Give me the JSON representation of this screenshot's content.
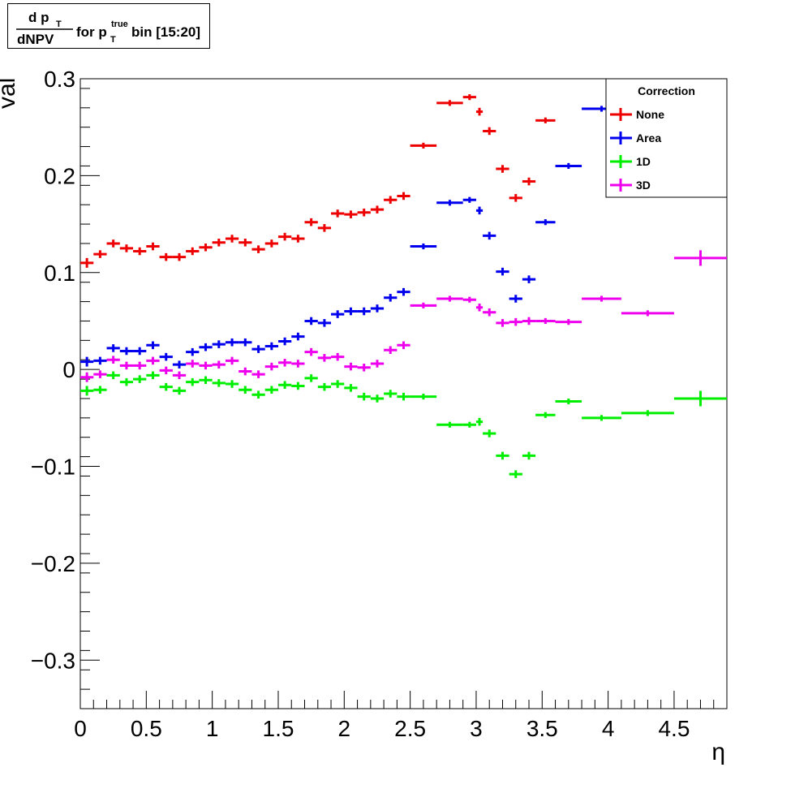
{
  "chart_data": {
    "type": "scatter",
    "title": {
      "frac_top": "d p",
      "frac_top_sub": "T",
      "frac_bottom": "dNPV",
      "mid_text": "for p",
      "mid_sup": "true",
      "mid_sub": "T",
      "tail_text": "bin [15:20]"
    },
    "xlabel": "η",
    "ylabel": "val",
    "xlim": [
      0,
      4.9
    ],
    "ylim": [
      -0.35,
      0.3
    ],
    "x_ticks": [
      0,
      0.5,
      1,
      1.5,
      2,
      2.5,
      3,
      3.5,
      4,
      4.5
    ],
    "x_tick_labels": [
      "0",
      "0.5",
      "1",
      "1.5",
      "2",
      "2.5",
      "3",
      "3.5",
      "4",
      "4.5"
    ],
    "y_ticks": [
      -0.3,
      -0.2,
      -0.1,
      0,
      0.1,
      0.2,
      0.3
    ],
    "y_tick_labels": [
      "−0.3",
      "−0.2",
      "−0.1",
      "0",
      "0.1",
      "0.2",
      "0.3"
    ],
    "legend": {
      "title": "Correction",
      "placement": "top-right"
    },
    "bins": [
      {
        "lo": 0.0,
        "hi": 0.1
      },
      {
        "lo": 0.1,
        "hi": 0.2
      },
      {
        "lo": 0.2,
        "hi": 0.3
      },
      {
        "lo": 0.3,
        "hi": 0.4
      },
      {
        "lo": 0.4,
        "hi": 0.5
      },
      {
        "lo": 0.5,
        "hi": 0.6
      },
      {
        "lo": 0.6,
        "hi": 0.7
      },
      {
        "lo": 0.7,
        "hi": 0.8
      },
      {
        "lo": 0.8,
        "hi": 0.9
      },
      {
        "lo": 0.9,
        "hi": 1.0
      },
      {
        "lo": 1.0,
        "hi": 1.1
      },
      {
        "lo": 1.1,
        "hi": 1.2
      },
      {
        "lo": 1.2,
        "hi": 1.3
      },
      {
        "lo": 1.3,
        "hi": 1.4
      },
      {
        "lo": 1.4,
        "hi": 1.5
      },
      {
        "lo": 1.5,
        "hi": 1.6
      },
      {
        "lo": 1.6,
        "hi": 1.7
      },
      {
        "lo": 1.7,
        "hi": 1.8
      },
      {
        "lo": 1.8,
        "hi": 1.9
      },
      {
        "lo": 1.9,
        "hi": 2.0
      },
      {
        "lo": 2.0,
        "hi": 2.1
      },
      {
        "lo": 2.1,
        "hi": 2.2
      },
      {
        "lo": 2.2,
        "hi": 2.3
      },
      {
        "lo": 2.3,
        "hi": 2.4
      },
      {
        "lo": 2.4,
        "hi": 2.5
      },
      {
        "lo": 2.5,
        "hi": 2.7
      },
      {
        "lo": 2.7,
        "hi": 2.9
      },
      {
        "lo": 2.9,
        "hi": 3.0
      },
      {
        "lo": 3.0,
        "hi": 3.05
      },
      {
        "lo": 3.05,
        "hi": 3.15
      },
      {
        "lo": 3.15,
        "hi": 3.25
      },
      {
        "lo": 3.25,
        "hi": 3.35
      },
      {
        "lo": 3.35,
        "hi": 3.45
      },
      {
        "lo": 3.45,
        "hi": 3.6
      },
      {
        "lo": 3.6,
        "hi": 3.8
      },
      {
        "lo": 3.8,
        "hi": 4.1
      },
      {
        "lo": 4.1,
        "hi": 4.5
      },
      {
        "lo": 4.5,
        "hi": 4.9
      }
    ],
    "series": [
      {
        "name": "None",
        "color": "#ee0000",
        "values": [
          0.11,
          0.119,
          0.13,
          0.125,
          0.122,
          0.127,
          0.116,
          0.116,
          0.122,
          0.126,
          0.131,
          0.135,
          0.131,
          0.124,
          0.13,
          0.137,
          0.135,
          0.152,
          0.146,
          0.161,
          0.16,
          0.162,
          0.165,
          0.175,
          0.179,
          0.231,
          0.275,
          0.281,
          0.266,
          0.246,
          0.207,
          0.177,
          0.194,
          0.257,
          null,
          null,
          null,
          null
        ],
        "errors": [
          0.005,
          0.004,
          0.004,
          0.004,
          0.004,
          0.004,
          0.004,
          0.004,
          0.004,
          0.004,
          0.004,
          0.004,
          0.004,
          0.004,
          0.004,
          0.004,
          0.004,
          0.004,
          0.004,
          0.004,
          0.004,
          0.004,
          0.004,
          0.004,
          0.004,
          0.003,
          0.003,
          0.003,
          0.004,
          0.004,
          0.004,
          0.004,
          0.004,
          0.003,
          null,
          null,
          null,
          null
        ]
      },
      {
        "name": "Area",
        "color": "#0000ee",
        "values": [
          0.008,
          0.009,
          0.022,
          0.019,
          0.019,
          0.025,
          0.013,
          0.005,
          0.018,
          0.023,
          0.026,
          0.028,
          0.028,
          0.021,
          0.024,
          0.029,
          0.034,
          0.05,
          0.048,
          0.057,
          0.06,
          0.06,
          0.063,
          0.074,
          0.08,
          0.127,
          0.172,
          0.175,
          0.164,
          0.138,
          0.101,
          0.073,
          0.093,
          0.152,
          0.21,
          0.269,
          null,
          null
        ],
        "errors": [
          0.005,
          0.004,
          0.004,
          0.004,
          0.004,
          0.004,
          0.004,
          0.004,
          0.004,
          0.004,
          0.004,
          0.004,
          0.004,
          0.004,
          0.004,
          0.004,
          0.004,
          0.004,
          0.004,
          0.004,
          0.004,
          0.004,
          0.004,
          0.004,
          0.004,
          0.003,
          0.003,
          0.003,
          0.004,
          0.004,
          0.004,
          0.004,
          0.004,
          0.003,
          0.003,
          0.003,
          null,
          null
        ]
      },
      {
        "name": "1D",
        "color": "#00ee00",
        "values": [
          -0.022,
          -0.021,
          -0.006,
          -0.013,
          -0.01,
          -0.006,
          -0.018,
          -0.022,
          -0.013,
          -0.011,
          -0.014,
          -0.015,
          -0.021,
          -0.026,
          -0.021,
          -0.016,
          -0.017,
          -0.009,
          -0.018,
          -0.015,
          -0.019,
          -0.028,
          -0.03,
          -0.025,
          -0.028,
          -0.028,
          -0.057,
          -0.057,
          -0.054,
          -0.066,
          -0.089,
          -0.108,
          -0.089,
          -0.047,
          -0.033,
          -0.05,
          -0.045,
          -0.03
        ],
        "errors": [
          0.005,
          0.004,
          0.004,
          0.004,
          0.004,
          0.004,
          0.004,
          0.004,
          0.004,
          0.004,
          0.004,
          0.004,
          0.004,
          0.004,
          0.004,
          0.004,
          0.004,
          0.004,
          0.004,
          0.004,
          0.004,
          0.004,
          0.004,
          0.004,
          0.004,
          0.003,
          0.003,
          0.003,
          0.004,
          0.004,
          0.004,
          0.004,
          0.004,
          0.003,
          0.003,
          0.003,
          0.003,
          0.008
        ]
      },
      {
        "name": "3D",
        "color": "#ee00ee",
        "values": [
          -0.008,
          -0.005,
          0.01,
          0.004,
          0.004,
          0.009,
          -0.001,
          -0.006,
          0.006,
          0.004,
          0.005,
          0.009,
          -0.002,
          -0.005,
          0.003,
          0.007,
          0.006,
          0.018,
          0.012,
          0.013,
          0.003,
          0.002,
          0.006,
          0.02,
          0.025,
          0.066,
          0.073,
          0.072,
          0.064,
          0.059,
          0.048,
          0.049,
          0.05,
          0.05,
          0.049,
          0.073,
          0.058,
          0.115
        ],
        "errors": [
          0.005,
          0.004,
          0.004,
          0.004,
          0.004,
          0.004,
          0.004,
          0.004,
          0.004,
          0.004,
          0.004,
          0.004,
          0.004,
          0.004,
          0.004,
          0.004,
          0.004,
          0.004,
          0.004,
          0.004,
          0.004,
          0.004,
          0.004,
          0.004,
          0.004,
          0.003,
          0.003,
          0.003,
          0.004,
          0.004,
          0.004,
          0.004,
          0.004,
          0.003,
          0.003,
          0.003,
          0.003,
          0.008
        ]
      }
    ]
  }
}
